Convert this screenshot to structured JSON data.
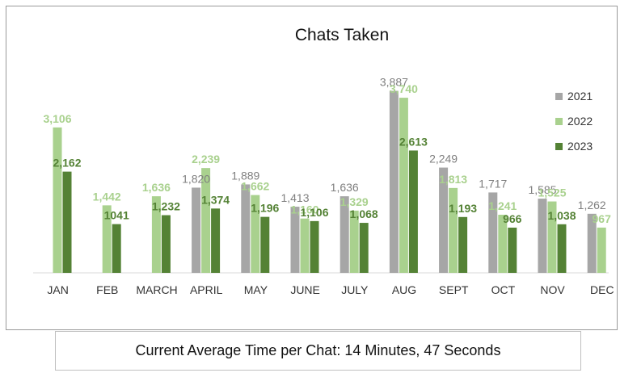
{
  "chart_data": {
    "type": "bar",
    "title": "Chats Taken",
    "categories": [
      "JAN",
      "FEB",
      "MARCH",
      "APRIL",
      "MAY",
      "JUNE",
      "JULY",
      "AUG",
      "SEPT",
      "OCT",
      "NOV",
      "DEC"
    ],
    "series": [
      {
        "name": "2021",
        "color": "#a6a6a6",
        "label_color": "#7f7f7f",
        "label_weight": "normal",
        "values": [
          null,
          null,
          null,
          1820,
          1889,
          1413,
          1636,
          3887,
          2249,
          1717,
          1585,
          1262
        ],
        "labels": [
          "",
          "",
          "",
          "1,820",
          "1,889",
          "1,413",
          "1,636",
          "3,887",
          "2,249",
          "1,717",
          "1,585",
          "1,262"
        ]
      },
      {
        "name": "2022",
        "color": "#a9d18e",
        "label_color": "#a9d18e",
        "label_weight": "bold",
        "values": [
          3106,
          1442,
          1636,
          2239,
          1662,
          1160,
          1329,
          3740,
          1813,
          1241,
          1525,
          967
        ],
        "labels": [
          "3,106",
          "1,442",
          "1,636",
          "2,239",
          "1,662",
          "1,160",
          "1,329",
          "3,740",
          "1,813",
          "1,241",
          "1,525",
          "967"
        ]
      },
      {
        "name": "2023",
        "color": "#548235",
        "label_color": "#548235",
        "label_weight": "bold",
        "values": [
          2162,
          1041,
          1232,
          1374,
          1196,
          1106,
          1068,
          2613,
          1193,
          966,
          1038,
          null
        ],
        "labels": [
          "2,162",
          "1041",
          "1,232",
          "1,374",
          "1,196",
          "1,106",
          "1,068",
          "2,613",
          "1,193",
          "966",
          "1,038",
          ""
        ]
      }
    ],
    "legend_position": "right",
    "grid": false,
    "ylim": [
      0,
      4000
    ]
  },
  "footer": {
    "text": "Current Average Time per Chat: 14 Minutes, 47 Seconds"
  }
}
